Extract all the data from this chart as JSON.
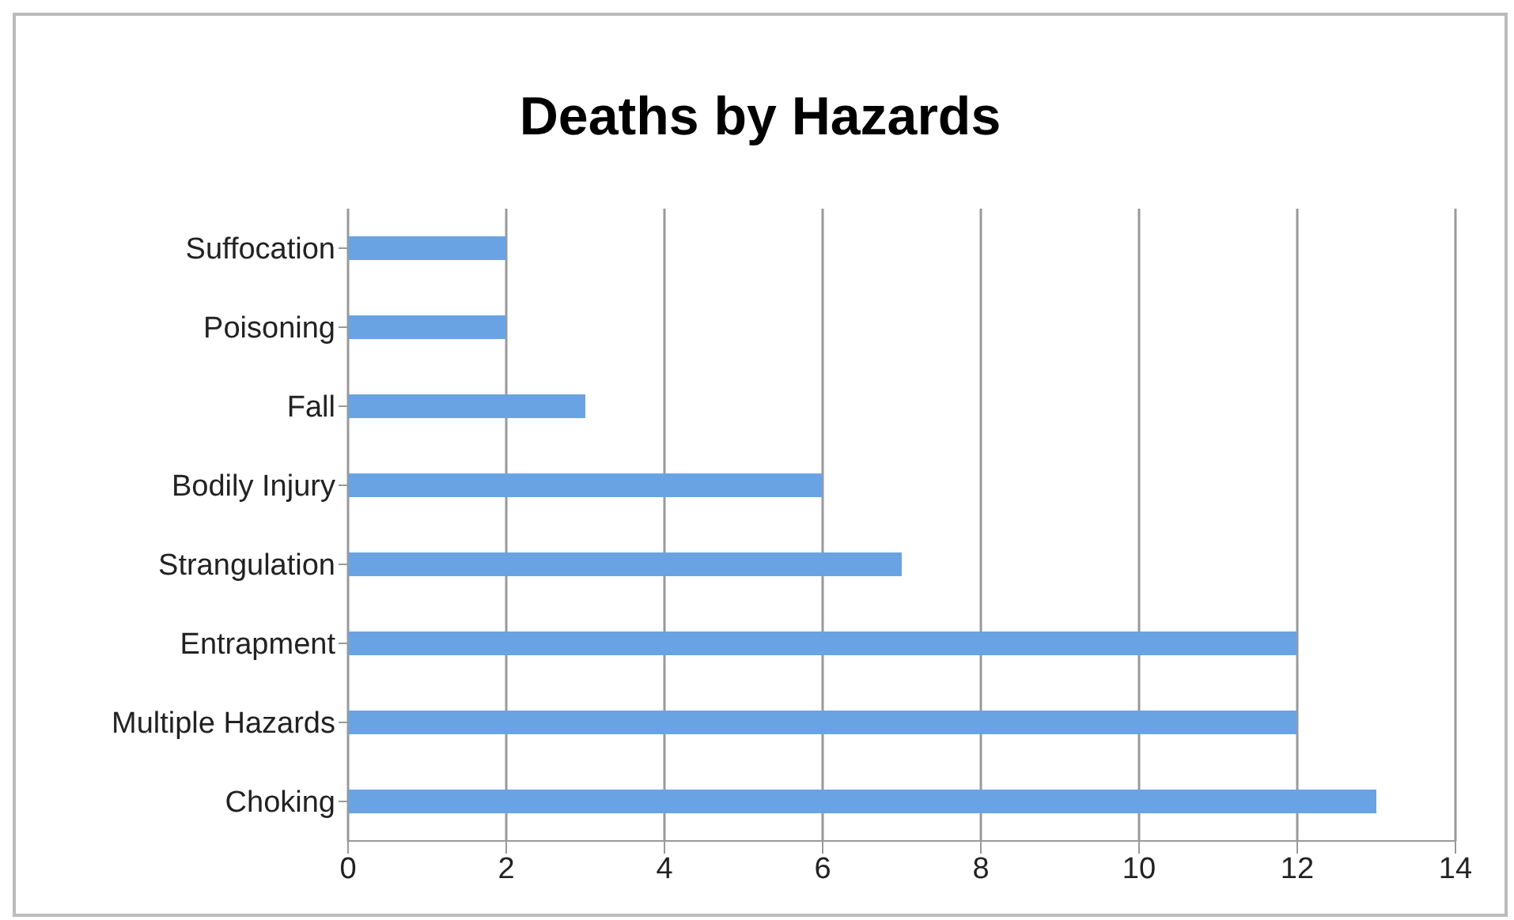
{
  "chart_data": {
    "type": "bar",
    "orientation": "horizontal",
    "title": "Deaths by Hazards",
    "categories": [
      "Suffocation",
      "Poisoning",
      "Fall",
      "Bodily Injury",
      "Strangulation",
      "Entrapment",
      "Multiple Hazards",
      "Choking"
    ],
    "values": [
      2,
      2,
      3,
      6,
      7,
      12,
      12,
      13
    ],
    "color": "#6aa3e3",
    "xlim": [
      0,
      14
    ],
    "xticks": [
      0,
      2,
      4,
      6,
      8,
      10,
      12,
      14
    ],
    "grid": "x",
    "legend": false
  }
}
